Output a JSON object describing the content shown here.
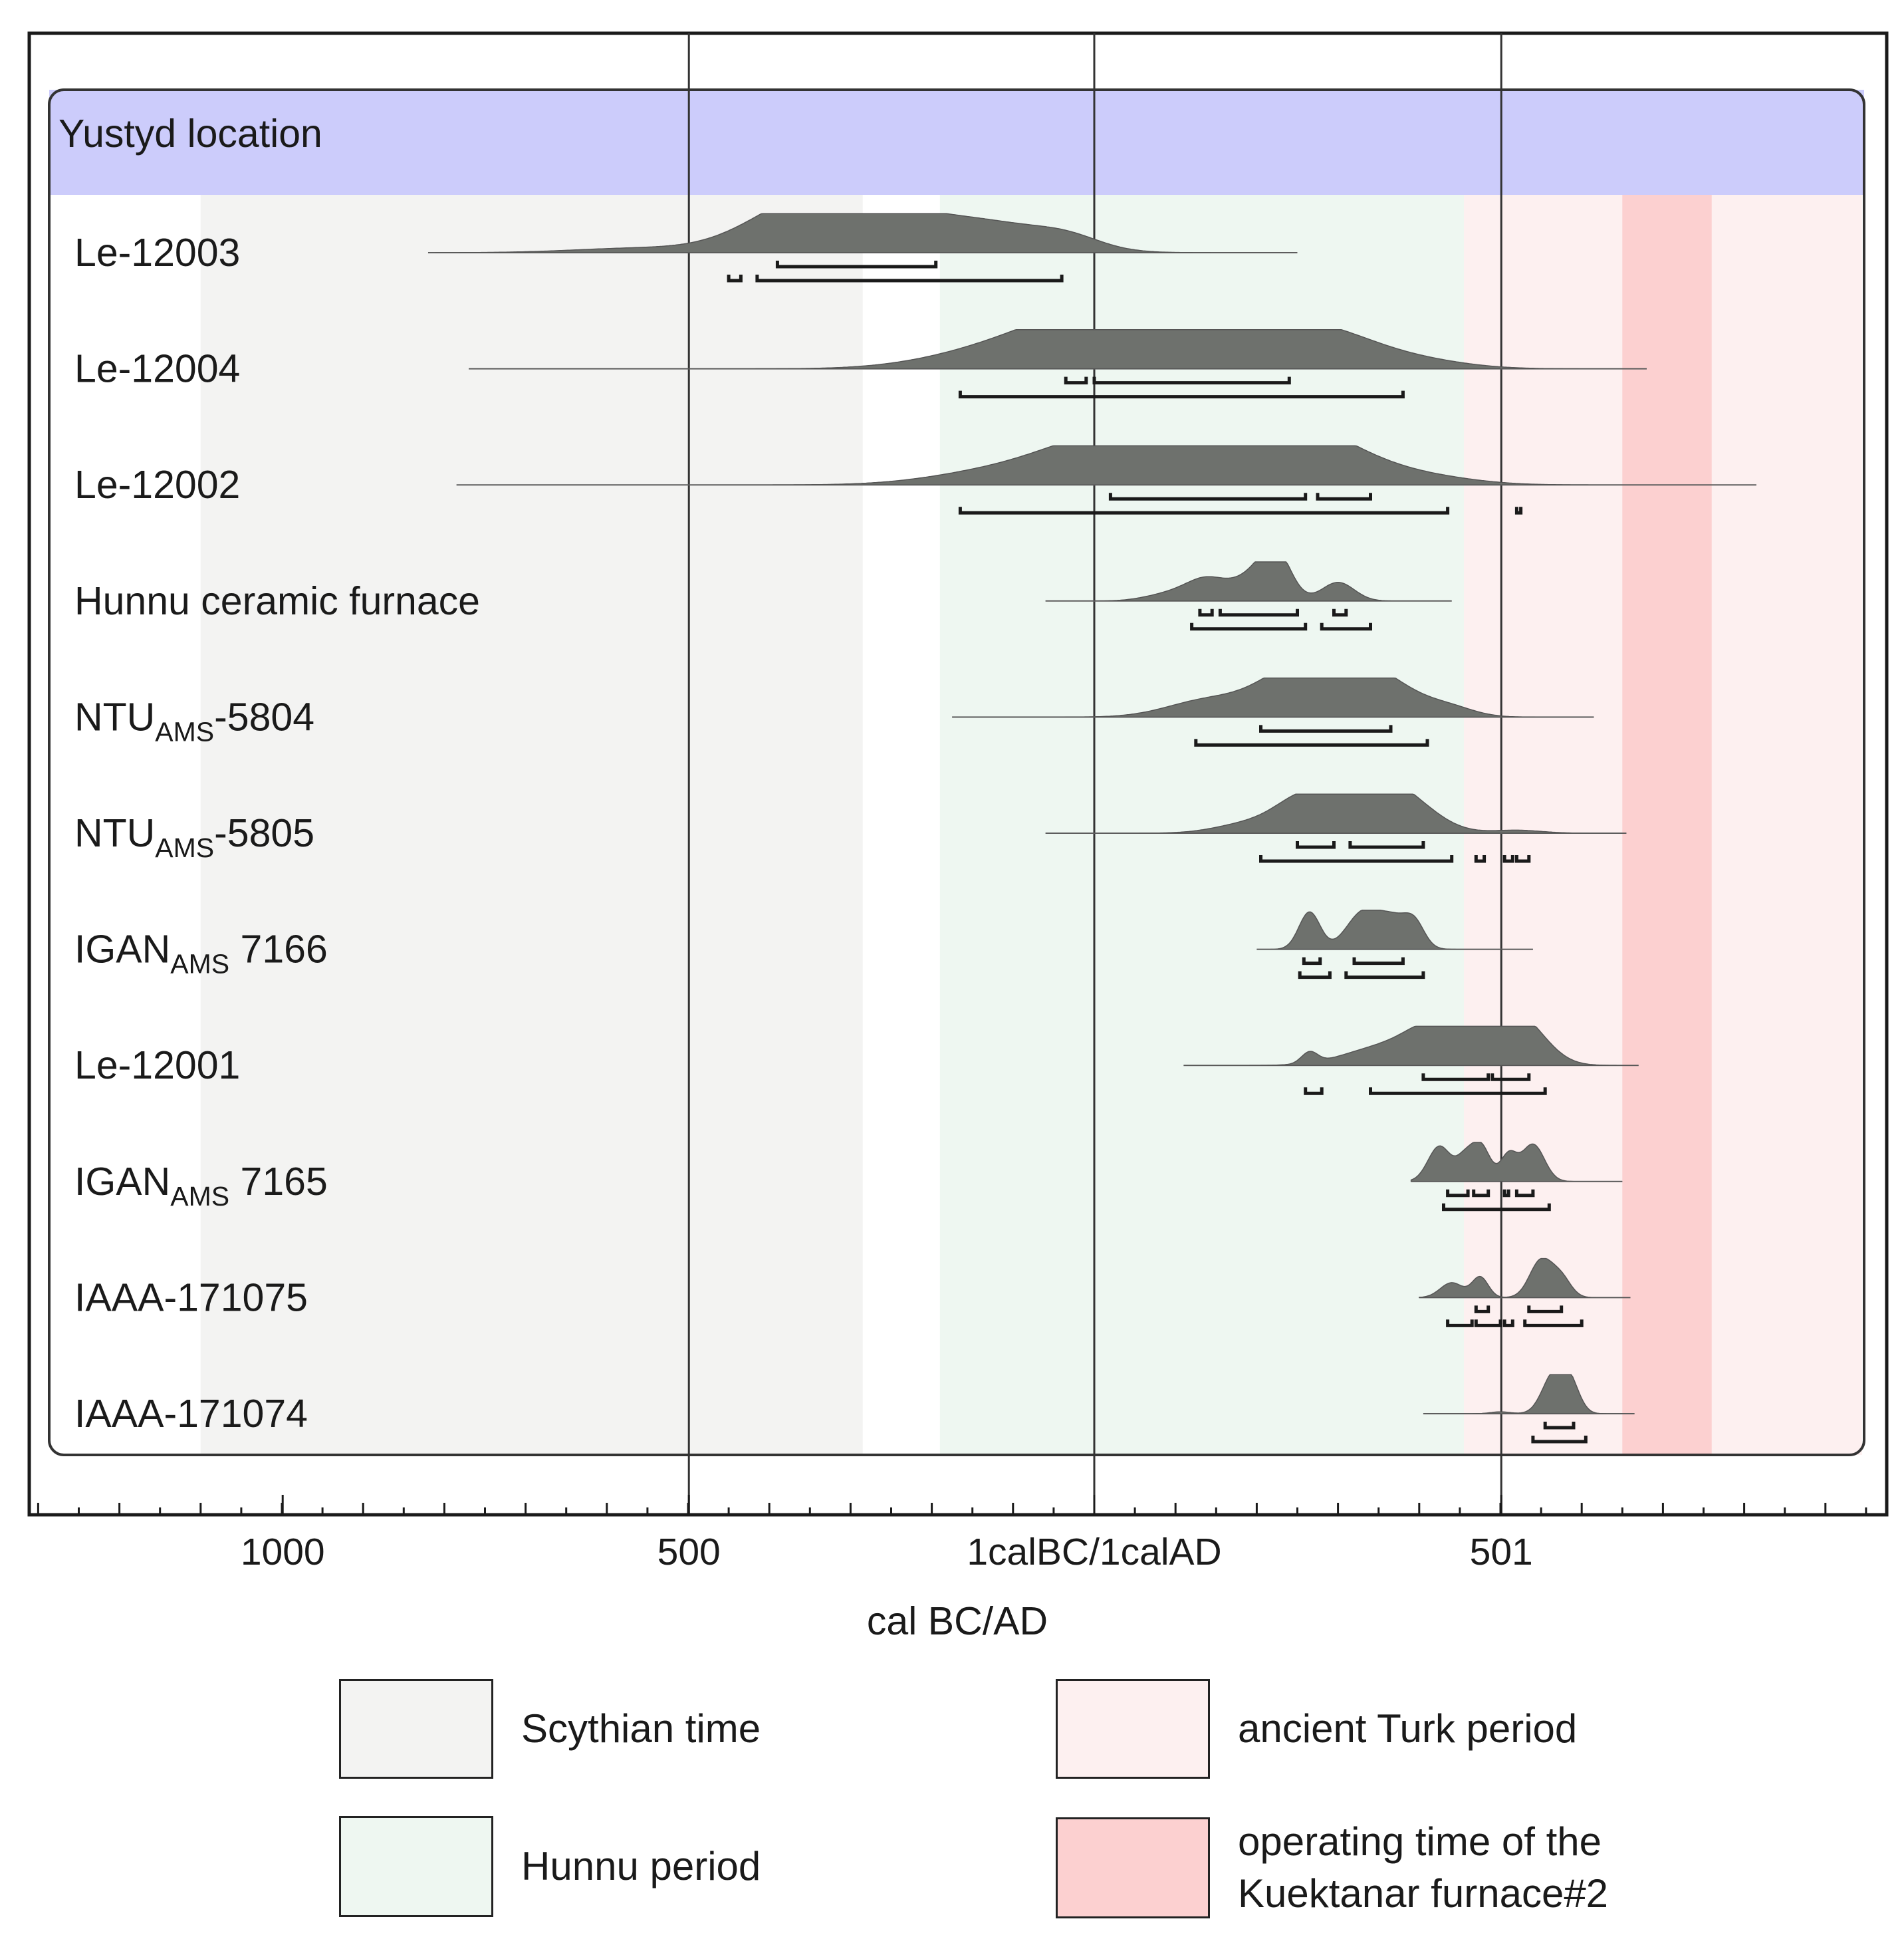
{
  "chart_data": {
    "type": "calibrated-date-multiplot",
    "group_label": "Yustyd location",
    "xlabel": "cal BC/AD",
    "x_axis": {
      "range": [
        -1300,
        950
      ],
      "major_ticks": [
        {
          "value": -999,
          "label": "1000"
        },
        {
          "value": -499,
          "label": "500"
        },
        {
          "value": 0,
          "label": "1calBC/1calAD"
        },
        {
          "value": 501,
          "label": "501"
        }
      ],
      "minor_step": 50
    },
    "gridlines": [
      -499,
      0,
      501
    ],
    "periods": [
      {
        "name": "Scythian time",
        "start": -1100,
        "end": -285,
        "color": "#f3f3f2"
      },
      {
        "name": "Hunnu period",
        "start": -190,
        "end": 455,
        "color": "#eef7f1"
      },
      {
        "name": "ancient Turk period",
        "start": 455,
        "end": 945,
        "color": "#fdf0f0"
      },
      {
        "name": "operating time of the\nKuektanar furnace#2",
        "start": 650,
        "end": 760,
        "color": "#fcd0d0"
      }
    ],
    "samples": [
      {
        "label": "Le-12003",
        "sub": "",
        "suffix": "",
        "range": [
          -820,
          250
        ],
        "peaks": [
          [
            -360,
            70,
            1.0
          ],
          [
            -260,
            90,
            1.0
          ],
          [
            -110,
            70,
            0.55
          ],
          [
            -560,
            80,
            0.12
          ],
          [
            -30,
            40,
            0.25
          ]
        ],
        "sigma1": [
          [
            -390,
            -195
          ]
        ],
        "sigma2": [
          [
            -450,
            -435
          ],
          [
            -415,
            -40
          ]
        ]
      },
      {
        "label": "Le-12004",
        "sub": "",
        "suffix": "",
        "range": [
          -770,
          680
        ],
        "peaks": [
          [
            -20,
            80,
            0.85
          ],
          [
            80,
            100,
            1.0
          ],
          [
            200,
            80,
            0.85
          ],
          [
            300,
            60,
            0.55
          ],
          [
            -140,
            80,
            0.35
          ],
          [
            400,
            60,
            0.2
          ]
        ],
        "sigma1": [
          [
            -35,
            -10
          ],
          [
            0,
            240
          ]
        ],
        "sigma2": [
          [
            -165,
            380
          ]
        ]
      },
      {
        "label": "Le-12002",
        "sub": "",
        "suffix": "",
        "range": [
          -785,
          815
        ],
        "peaks": [
          [
            0,
            70,
            0.75
          ],
          [
            120,
            100,
            1.0
          ],
          [
            230,
            50,
            0.85
          ],
          [
            300,
            60,
            0.75
          ],
          [
            -120,
            80,
            0.35
          ],
          [
            410,
            60,
            0.2
          ]
        ],
        "sigma1": [
          [
            20,
            260
          ],
          [
            275,
            340
          ]
        ],
        "sigma2": [
          [
            -165,
            435
          ],
          [
            520,
            525
          ]
        ]
      },
      {
        "label": "Hunnu ceramic furnace",
        "sub": "",
        "suffix": "",
        "range": [
          -60,
          440
        ],
        "peaks": [
          [
            140,
            25,
            0.55
          ],
          [
            200,
            25,
            0.7
          ],
          [
            225,
            18,
            1.0
          ],
          [
            300,
            20,
            0.5
          ],
          [
            95,
            30,
            0.2
          ]
        ],
        "sigma1": [
          [
            130,
            145
          ],
          [
            155,
            250
          ],
          [
            295,
            310
          ]
        ],
        "sigma2": [
          [
            120,
            260
          ],
          [
            280,
            340
          ]
        ]
      },
      {
        "label": "NTU",
        "sub": "AMS",
        "suffix": "-5804",
        "range": [
          -175,
          615
        ],
        "peaks": [
          [
            240,
            45,
            0.95
          ],
          [
            300,
            45,
            1.0
          ],
          [
            360,
            45,
            0.75
          ],
          [
            140,
            50,
            0.45
          ],
          [
            440,
            30,
            0.2
          ]
        ],
        "sigma1": [
          [
            205,
            365
          ]
        ],
        "sigma2": [
          [
            125,
            410
          ]
        ]
      },
      {
        "label": "NTU",
        "sub": "AMS",
        "suffix": "-5805",
        "range": [
          -60,
          655
        ],
        "peaks": [
          [
            260,
            35,
            0.95
          ],
          [
            330,
            35,
            1.0
          ],
          [
            380,
            40,
            0.9
          ],
          [
            190,
            40,
            0.25
          ],
          [
            520,
            30,
            0.08
          ]
        ],
        "sigma1": [
          [
            250,
            295
          ],
          [
            315,
            405
          ]
        ],
        "sigma2": [
          [
            205,
            440
          ],
          [
            470,
            480
          ],
          [
            505,
            515
          ],
          [
            520,
            535
          ]
        ]
      },
      {
        "label": "IGAN",
        "sub": "AMS",
        "suffix": " 7166",
        "range": [
          200,
          540
        ],
        "peaks": [
          [
            265,
            13,
            1.0
          ],
          [
            330,
            20,
            0.95
          ],
          [
            370,
            20,
            0.8
          ],
          [
            395,
            12,
            0.5
          ]
        ],
        "sigma1": [
          [
            258,
            278
          ],
          [
            320,
            380
          ]
        ],
        "sigma2": [
          [
            253,
            290
          ],
          [
            310,
            405
          ]
        ]
      },
      {
        "label": "Le-12001",
        "sub": "",
        "suffix": "",
        "range": [
          110,
          670
        ],
        "peaks": [
          [
            420,
            35,
            1.0
          ],
          [
            490,
            30,
            0.9
          ],
          [
            530,
            30,
            0.95
          ],
          [
            350,
            45,
            0.45
          ],
          [
            265,
            10,
            0.3
          ]
        ],
        "sigma1": [
          [
            405,
            485
          ],
          [
            490,
            535
          ]
        ],
        "sigma2": [
          [
            260,
            280
          ],
          [
            340,
            555
          ]
        ]
      },
      {
        "label": "IGAN",
        "sub": "AMS",
        "suffix": " 7165",
        "range": [
          390,
          650
        ],
        "peaks": [
          [
            425,
            14,
            0.95
          ],
          [
            475,
            12,
            1.0
          ],
          [
            510,
            10,
            0.7
          ],
          [
            540,
            14,
            1.0
          ],
          [
            455,
            10,
            0.5
          ]
        ],
        "sigma1": [
          [
            435,
            460
          ],
          [
            467,
            485
          ],
          [
            505,
            510
          ],
          [
            520,
            540
          ]
        ],
        "sigma2": [
          [
            430,
            560
          ]
        ]
      },
      {
        "label": "IAAA-171075",
        "sub": "",
        "suffix": "",
        "range": [
          400,
          660
        ],
        "peaks": [
          [
            440,
            14,
            0.4
          ],
          [
            475,
            10,
            0.55
          ],
          [
            550,
            14,
            1.0
          ],
          [
            575,
            12,
            0.5
          ]
        ],
        "sigma1": [
          [
            470,
            485
          ],
          [
            535,
            575
          ]
        ],
        "sigma2": [
          [
            435,
            465
          ],
          [
            470,
            500
          ],
          [
            505,
            515
          ],
          [
            530,
            600
          ]
        ]
      },
      {
        "label": "IAAA-171074",
        "sub": "",
        "suffix": "",
        "range": [
          405,
          665
        ],
        "peaks": [
          [
            565,
            14,
            1.0
          ],
          [
            585,
            12,
            0.8
          ],
          [
            500,
            12,
            0.05
          ]
        ],
        "sigma1": [
          [
            555,
            590
          ]
        ],
        "sigma2": [
          [
            540,
            605
          ]
        ]
      }
    ]
  }
}
